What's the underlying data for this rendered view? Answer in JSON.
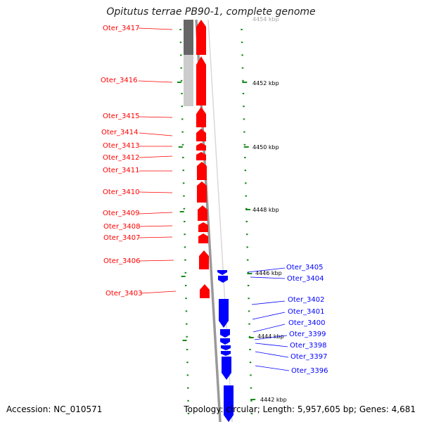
{
  "title": "Opitutus terrae PB90-1, complete genome",
  "footer": {
    "accession": "Accession: NC_010571",
    "topology": "Topology: circular; Length: 5,957,605 bp; Genes: 4,681"
  },
  "colors": {
    "forward": "#ff0000",
    "reverse": "#0000ff",
    "tick": "#1a8a1a",
    "backbone": "#999999"
  },
  "kbp_labels": [
    {
      "text": "4452 kbp"
    },
    {
      "text": "4450 kbp"
    },
    {
      "text": "4448 kbp"
    },
    {
      "text": "4446 kbp"
    },
    {
      "text": "4444 kbp"
    },
    {
      "text": "4442 kbp"
    }
  ],
  "forward_genes": [
    {
      "label": "Oter_3417"
    },
    {
      "label": "Oter_3416"
    },
    {
      "label": "Oter_3415"
    },
    {
      "label": "Oter_3414"
    },
    {
      "label": "Oter_3413"
    },
    {
      "label": "Oter_3412"
    },
    {
      "label": "Oter_3411"
    },
    {
      "label": "Oter_3410"
    },
    {
      "label": "Oter_3409"
    },
    {
      "label": "Oter_3408"
    },
    {
      "label": "Oter_3407"
    },
    {
      "label": "Oter_3406"
    },
    {
      "label": "Oter_3403"
    }
  ],
  "reverse_genes": [
    {
      "label": "Oter_3405"
    },
    {
      "label": "Oter_3404"
    },
    {
      "label": "Oter_3402"
    },
    {
      "label": "Oter_3401"
    },
    {
      "label": "Oter_3400"
    },
    {
      "label": "Oter_3399"
    },
    {
      "label": "Oter_3398"
    },
    {
      "label": "Oter_3397"
    },
    {
      "label": "Oter_3396"
    }
  ]
}
